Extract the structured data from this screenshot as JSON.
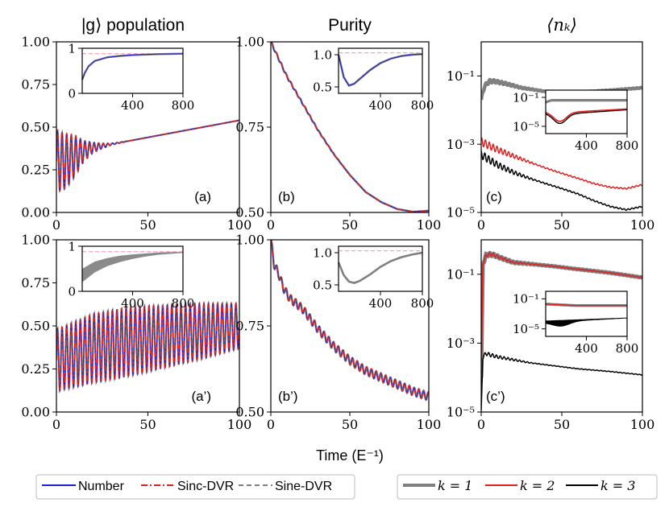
{
  "figure": {
    "xlabel": "Time (E⁻¹)",
    "titles": {
      "pop": "|g⟩ population",
      "pur": "Purity",
      "nk": "⟨nₖ⟩"
    },
    "panel_labels": [
      "(a)",
      "(b)",
      "(c)",
      "(a’)",
      "(b’)",
      "(c’)"
    ],
    "legend_methods": [
      "Number",
      "Sinc-DVR",
      "Sine-DVR"
    ],
    "legend_k": [
      "k = 1",
      "k = 2",
      "k = 3"
    ],
    "colors": {
      "number": "#1f1fd6",
      "sinc": "#e01f1f",
      "sine": "#808080",
      "k1": "#808080",
      "k2": "#e01f1f",
      "k3": "#000000",
      "ref": "#f4a6b8"
    }
  },
  "chart_data": [
    {
      "id": "a",
      "type": "line",
      "title": "|g⟩ population",
      "xlim": [
        0,
        100
      ],
      "ylim": [
        0,
        1
      ],
      "xticks": [
        "0",
        "50",
        "100"
      ],
      "yticks": [
        "0.00",
        "0.25",
        "0.50",
        "0.75",
        "1.00"
      ],
      "series": [
        {
          "name": "Number"
        },
        {
          "name": "Sinc-DVR"
        },
        {
          "name": "Sine-DVR"
        }
      ],
      "envelope": {
        "x": [
          0,
          5,
          10,
          15,
          20,
          25,
          30,
          40,
          50,
          60,
          70,
          80,
          90,
          100
        ],
        "center": [
          0.3,
          0.3,
          0.33,
          0.36,
          0.38,
          0.39,
          0.4,
          0.42,
          0.44,
          0.46,
          0.48,
          0.5,
          0.52,
          0.54
        ],
        "amp": [
          0.18,
          0.16,
          0.12,
          0.06,
          0.03,
          0.015,
          0.005,
          0,
          0,
          0,
          0,
          0,
          0,
          0
        ]
      },
      "inset": {
        "xlim": [
          0,
          800
        ],
        "ylim": [
          0,
          1
        ],
        "xticks": [
          "400",
          "800"
        ],
        "yticks": [
          "0",
          "1"
        ],
        "x": [
          0,
          20,
          50,
          100,
          200,
          300,
          400,
          500,
          600,
          700,
          800
        ],
        "y": [
          0.3,
          0.45,
          0.6,
          0.72,
          0.8,
          0.83,
          0.85,
          0.86,
          0.87,
          0.875,
          0.88
        ],
        "ref": 0.88
      }
    },
    {
      "id": "b",
      "type": "line",
      "title": "Purity",
      "xlim": [
        0,
        100
      ],
      "ylim": [
        0.5,
        1
      ],
      "xticks": [
        "0",
        "50",
        "100"
      ],
      "yticks": [
        "0.50",
        "0.75",
        "1.00"
      ],
      "series": [
        {
          "name": "Number"
        },
        {
          "name": "Sinc-DVR"
        },
        {
          "name": "Sine-DVR"
        }
      ],
      "x": [
        0,
        2,
        5,
        10,
        15,
        20,
        30,
        40,
        50,
        60,
        70,
        80,
        90,
        100
      ],
      "y": [
        1.0,
        0.98,
        0.95,
        0.9,
        0.86,
        0.82,
        0.74,
        0.67,
        0.61,
        0.56,
        0.53,
        0.51,
        0.502,
        0.505
      ],
      "inset": {
        "xlim": [
          0,
          800
        ],
        "ylim": [
          0.4,
          1.1
        ],
        "xticks": [
          "400",
          "800"
        ],
        "yticks": [
          "0.5",
          "1.0"
        ],
        "x": [
          0,
          50,
          100,
          150,
          200,
          300,
          400,
          500,
          600,
          700,
          800
        ],
        "y": [
          1.0,
          0.65,
          0.52,
          0.55,
          0.62,
          0.76,
          0.87,
          0.94,
          0.98,
          1.0,
          1.01
        ],
        "ref": 1.03
      }
    },
    {
      "id": "c",
      "type": "line",
      "title": "⟨nₖ⟩",
      "xlim": [
        0,
        100
      ],
      "ylog": true,
      "ylim": [
        1e-05,
        1
      ],
      "xticks": [
        "0",
        "50",
        "100"
      ],
      "yticks": [
        "10⁻⁵",
        "10⁻³",
        "10⁻¹"
      ],
      "series": [
        {
          "name": "k = 1",
          "x": [
            0,
            2,
            5,
            8,
            15,
            25,
            40,
            60,
            80,
            100
          ],
          "y": [
            0.02,
            0.05,
            0.07,
            0.07,
            0.06,
            0.045,
            0.035,
            0.033,
            0.038,
            0.045
          ]
        },
        {
          "name": "k = 2",
          "x": [
            0,
            3,
            10,
            20,
            30,
            40,
            50,
            60,
            70,
            80,
            90,
            100
          ],
          "y": [
            0.0012,
            0.001,
            0.0007,
            0.00045,
            0.0003,
            0.0002,
            0.00014,
            0.0001,
            7e-05,
            5.5e-05,
            5e-05,
            6.5e-05
          ]
        },
        {
          "name": "k = 3",
          "x": [
            0,
            3,
            10,
            20,
            30,
            40,
            50,
            60,
            70,
            80,
            90,
            100
          ],
          "y": [
            0.0005,
            0.0004,
            0.00025,
            0.00015,
            0.0001,
            7e-05,
            5e-05,
            3.5e-05,
            2.2e-05,
            1.5e-05,
            1.2e-05,
            1.5e-05
          ]
        }
      ],
      "inset": {
        "xlim": [
          0,
          800
        ],
        "ylog": true,
        "ylim": [
          1e-06,
          1
        ],
        "xticks": [
          "400",
          "800"
        ],
        "yticks": [
          "10⁻⁵",
          "10⁻¹"
        ]
      }
    },
    {
      "id": "a2",
      "type": "line",
      "title": "",
      "xlim": [
        0,
        100
      ],
      "ylim": [
        0,
        1
      ],
      "xticks": [
        "0",
        "50",
        "100"
      ],
      "yticks": [
        "0.00",
        "0.25",
        "0.50",
        "0.75",
        "1.00"
      ],
      "series": [
        {
          "name": "Number"
        },
        {
          "name": "Sinc-DVR"
        },
        {
          "name": "Sine-DVR"
        }
      ],
      "envelope": {
        "x": [
          0,
          20,
          40,
          60,
          80,
          100
        ],
        "center": [
          0.3,
          0.37,
          0.41,
          0.44,
          0.47,
          0.5
        ],
        "amp": [
          0.18,
          0.2,
          0.2,
          0.18,
          0.16,
          0.13
        ]
      },
      "inset": {
        "xlim": [
          0,
          800
        ],
        "ylim": [
          0,
          1
        ],
        "xticks": [
          "400",
          "800"
        ],
        "yticks": [
          "0",
          "1"
        ],
        "x": [
          0,
          100,
          200,
          300,
          400,
          500,
          600,
          700,
          800
        ],
        "lower": [
          0.2,
          0.42,
          0.56,
          0.65,
          0.72,
          0.77,
          0.81,
          0.83,
          0.85
        ],
        "upper": [
          0.5,
          0.66,
          0.74,
          0.79,
          0.82,
          0.84,
          0.86,
          0.87,
          0.87
        ],
        "ref": 0.88
      }
    },
    {
      "id": "b2",
      "type": "line",
      "title": "",
      "xlim": [
        0,
        100
      ],
      "ylim": [
        0.5,
        1
      ],
      "xticks": [
        "0",
        "50",
        "100"
      ],
      "yticks": [
        "0.50",
        "0.75",
        "1.00"
      ],
      "series": [
        {
          "name": "Number"
        },
        {
          "name": "Sinc-DVR"
        },
        {
          "name": "Sine-DVR"
        }
      ],
      "x": [
        0,
        2,
        5,
        8,
        12,
        20,
        30,
        40,
        50,
        60,
        70,
        80,
        90,
        100
      ],
      "y": [
        1.0,
        0.93,
        0.9,
        0.86,
        0.83,
        0.8,
        0.74,
        0.69,
        0.65,
        0.62,
        0.6,
        0.58,
        0.56,
        0.545
      ],
      "inset": {
        "xlim": [
          0,
          800
        ],
        "ylim": [
          0.4,
          1.1
        ],
        "xticks": [
          "400",
          "800"
        ],
        "yticks": [
          "0.5",
          "1.0"
        ],
        "x": [
          0,
          50,
          100,
          150,
          200,
          300,
          400,
          500,
          600,
          700,
          800
        ],
        "y": [
          0.85,
          0.65,
          0.55,
          0.53,
          0.56,
          0.66,
          0.78,
          0.87,
          0.93,
          0.97,
          1.0
        ],
        "ref": 1.03
      }
    },
    {
      "id": "c2",
      "type": "line",
      "title": "",
      "xlim": [
        0,
        100
      ],
      "ylog": true,
      "ylim": [
        1e-05,
        1
      ],
      "xticks": [
        "0",
        "50",
        "100"
      ],
      "yticks": [
        "10⁻⁵",
        "10⁻³",
        "10⁻¹"
      ],
      "series": [
        {
          "name": "k = 1",
          "x": [
            0,
            1,
            3,
            5,
            8,
            12,
            20,
            30,
            45,
            60,
            80,
            100
          ],
          "y": [
            0.0001,
            0.2,
            0.35,
            0.38,
            0.36,
            0.3,
            0.22,
            0.2,
            0.17,
            0.14,
            0.11,
            0.08
          ]
        },
        {
          "name": "k = 2",
          "x": [
            0,
            1,
            3,
            5,
            8,
            12,
            20,
            30,
            45,
            60,
            80,
            100
          ],
          "y": [
            0.0001,
            0.2,
            0.35,
            0.38,
            0.36,
            0.3,
            0.22,
            0.2,
            0.17,
            0.14,
            0.11,
            0.08
          ]
        },
        {
          "name": "k = 3",
          "x": [
            0,
            1,
            3,
            6,
            10,
            20,
            30,
            45,
            60,
            80,
            100
          ],
          "y": [
            1e-05,
            0.0004,
            0.0005,
            0.00045,
            0.0004,
            0.00033,
            0.00027,
            0.00022,
            0.00018,
            0.00015,
            0.00012
          ]
        }
      ],
      "inset": {
        "xlim": [
          0,
          800
        ],
        "ylog": true,
        "ylim": [
          1e-06,
          1
        ],
        "xticks": [
          "400",
          "800"
        ],
        "yticks": [
          "10⁻⁵",
          "10⁻¹"
        ]
      }
    }
  ]
}
